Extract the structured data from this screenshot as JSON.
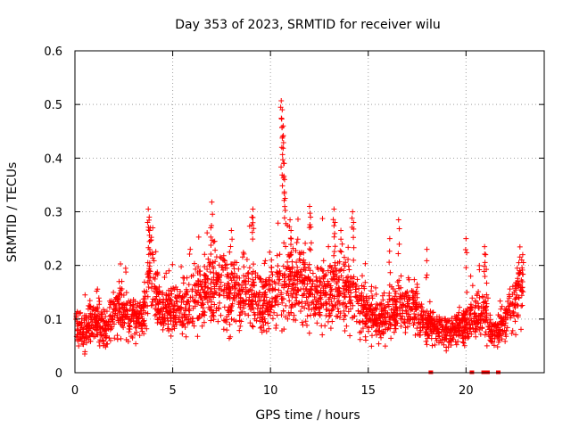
{
  "chart_data": {
    "type": "scatter",
    "title": "Day 353 of 2023, SRMTID for receiver wilu",
    "xlabel": "GPS time / hours",
    "ylabel": "SRMTID / TECUs",
    "xlim": [
      0,
      24
    ],
    "ylim": [
      0,
      0.6
    ],
    "x_ticks": [
      0,
      5,
      10,
      15,
      20
    ],
    "x_tick_labels": [
      "0",
      "5",
      "10",
      "15",
      "20"
    ],
    "y_ticks": [
      0,
      0.1,
      0.2,
      0.3,
      0.4,
      0.5,
      0.6
    ],
    "y_tick_labels": [
      "0",
      "0.1",
      "0.2",
      "0.3",
      "0.4",
      "0.5",
      "0.6"
    ],
    "grid": true,
    "marker": "+",
    "color": "#ff0000",
    "trend": [
      [
        0.0,
        0.085
      ],
      [
        0.5,
        0.08
      ],
      [
        1.0,
        0.105
      ],
      [
        1.5,
        0.07
      ],
      [
        2.0,
        0.115
      ],
      [
        2.5,
        0.115
      ],
      [
        3.0,
        0.095
      ],
      [
        3.5,
        0.11
      ],
      [
        3.8,
        0.19
      ],
      [
        4.3,
        0.13
      ],
      [
        5.0,
        0.115
      ],
      [
        5.5,
        0.12
      ],
      [
        6.0,
        0.13
      ],
      [
        6.5,
        0.155
      ],
      [
        7.0,
        0.16
      ],
      [
        7.5,
        0.165
      ],
      [
        8.0,
        0.15
      ],
      [
        8.5,
        0.145
      ],
      [
        9.0,
        0.16
      ],
      [
        9.5,
        0.13
      ],
      [
        10.0,
        0.15
      ],
      [
        10.5,
        0.17
      ],
      [
        11.0,
        0.165
      ],
      [
        11.5,
        0.17
      ],
      [
        12.0,
        0.16
      ],
      [
        12.5,
        0.14
      ],
      [
        13.0,
        0.15
      ],
      [
        13.5,
        0.16
      ],
      [
        14.0,
        0.155
      ],
      [
        14.5,
        0.13
      ],
      [
        15.0,
        0.11
      ],
      [
        15.5,
        0.1
      ],
      [
        16.0,
        0.11
      ],
      [
        16.5,
        0.12
      ],
      [
        17.0,
        0.12
      ],
      [
        17.5,
        0.12
      ],
      [
        18.0,
        0.085
      ],
      [
        18.5,
        0.08
      ],
      [
        19.0,
        0.075
      ],
      [
        19.5,
        0.085
      ],
      [
        20.0,
        0.09
      ],
      [
        20.5,
        0.105
      ],
      [
        21.0,
        0.125
      ],
      [
        21.2,
        0.075
      ],
      [
        21.5,
        0.07
      ],
      [
        22.0,
        0.095
      ],
      [
        22.5,
        0.13
      ],
      [
        22.8,
        0.165
      ]
    ],
    "spikes": [
      [
        3.75,
        0.305
      ],
      [
        3.8,
        0.29
      ],
      [
        3.85,
        0.27
      ],
      [
        7.0,
        0.318
      ],
      [
        6.95,
        0.27
      ],
      [
        9.1,
        0.305
      ],
      [
        9.05,
        0.29
      ],
      [
        8.0,
        0.265
      ],
      [
        10.55,
        0.507
      ],
      [
        10.6,
        0.49
      ],
      [
        10.65,
        0.46
      ],
      [
        10.62,
        0.44
      ],
      [
        10.58,
        0.42
      ],
      [
        10.7,
        0.39
      ],
      [
        10.72,
        0.36
      ],
      [
        10.75,
        0.325
      ],
      [
        11.0,
        0.285
      ],
      [
        11.05,
        0.265
      ],
      [
        12.0,
        0.31
      ],
      [
        12.05,
        0.29
      ],
      [
        13.25,
        0.305
      ],
      [
        13.3,
        0.28
      ],
      [
        14.2,
        0.3
      ],
      [
        14.25,
        0.28
      ],
      [
        16.55,
        0.285
      ],
      [
        20.95,
        0.235
      ],
      [
        21.0,
        0.22
      ],
      [
        22.9,
        0.22
      ],
      [
        22.7,
        0.205
      ],
      [
        22.85,
        0.21
      ],
      [
        18.0,
        0.23
      ],
      [
        20.0,
        0.25
      ],
      [
        16.1,
        0.25
      ],
      [
        13.6,
        0.265
      ]
    ],
    "zero_markers": [
      18.2,
      20.3,
      20.9,
      21.1,
      21.65
    ]
  }
}
